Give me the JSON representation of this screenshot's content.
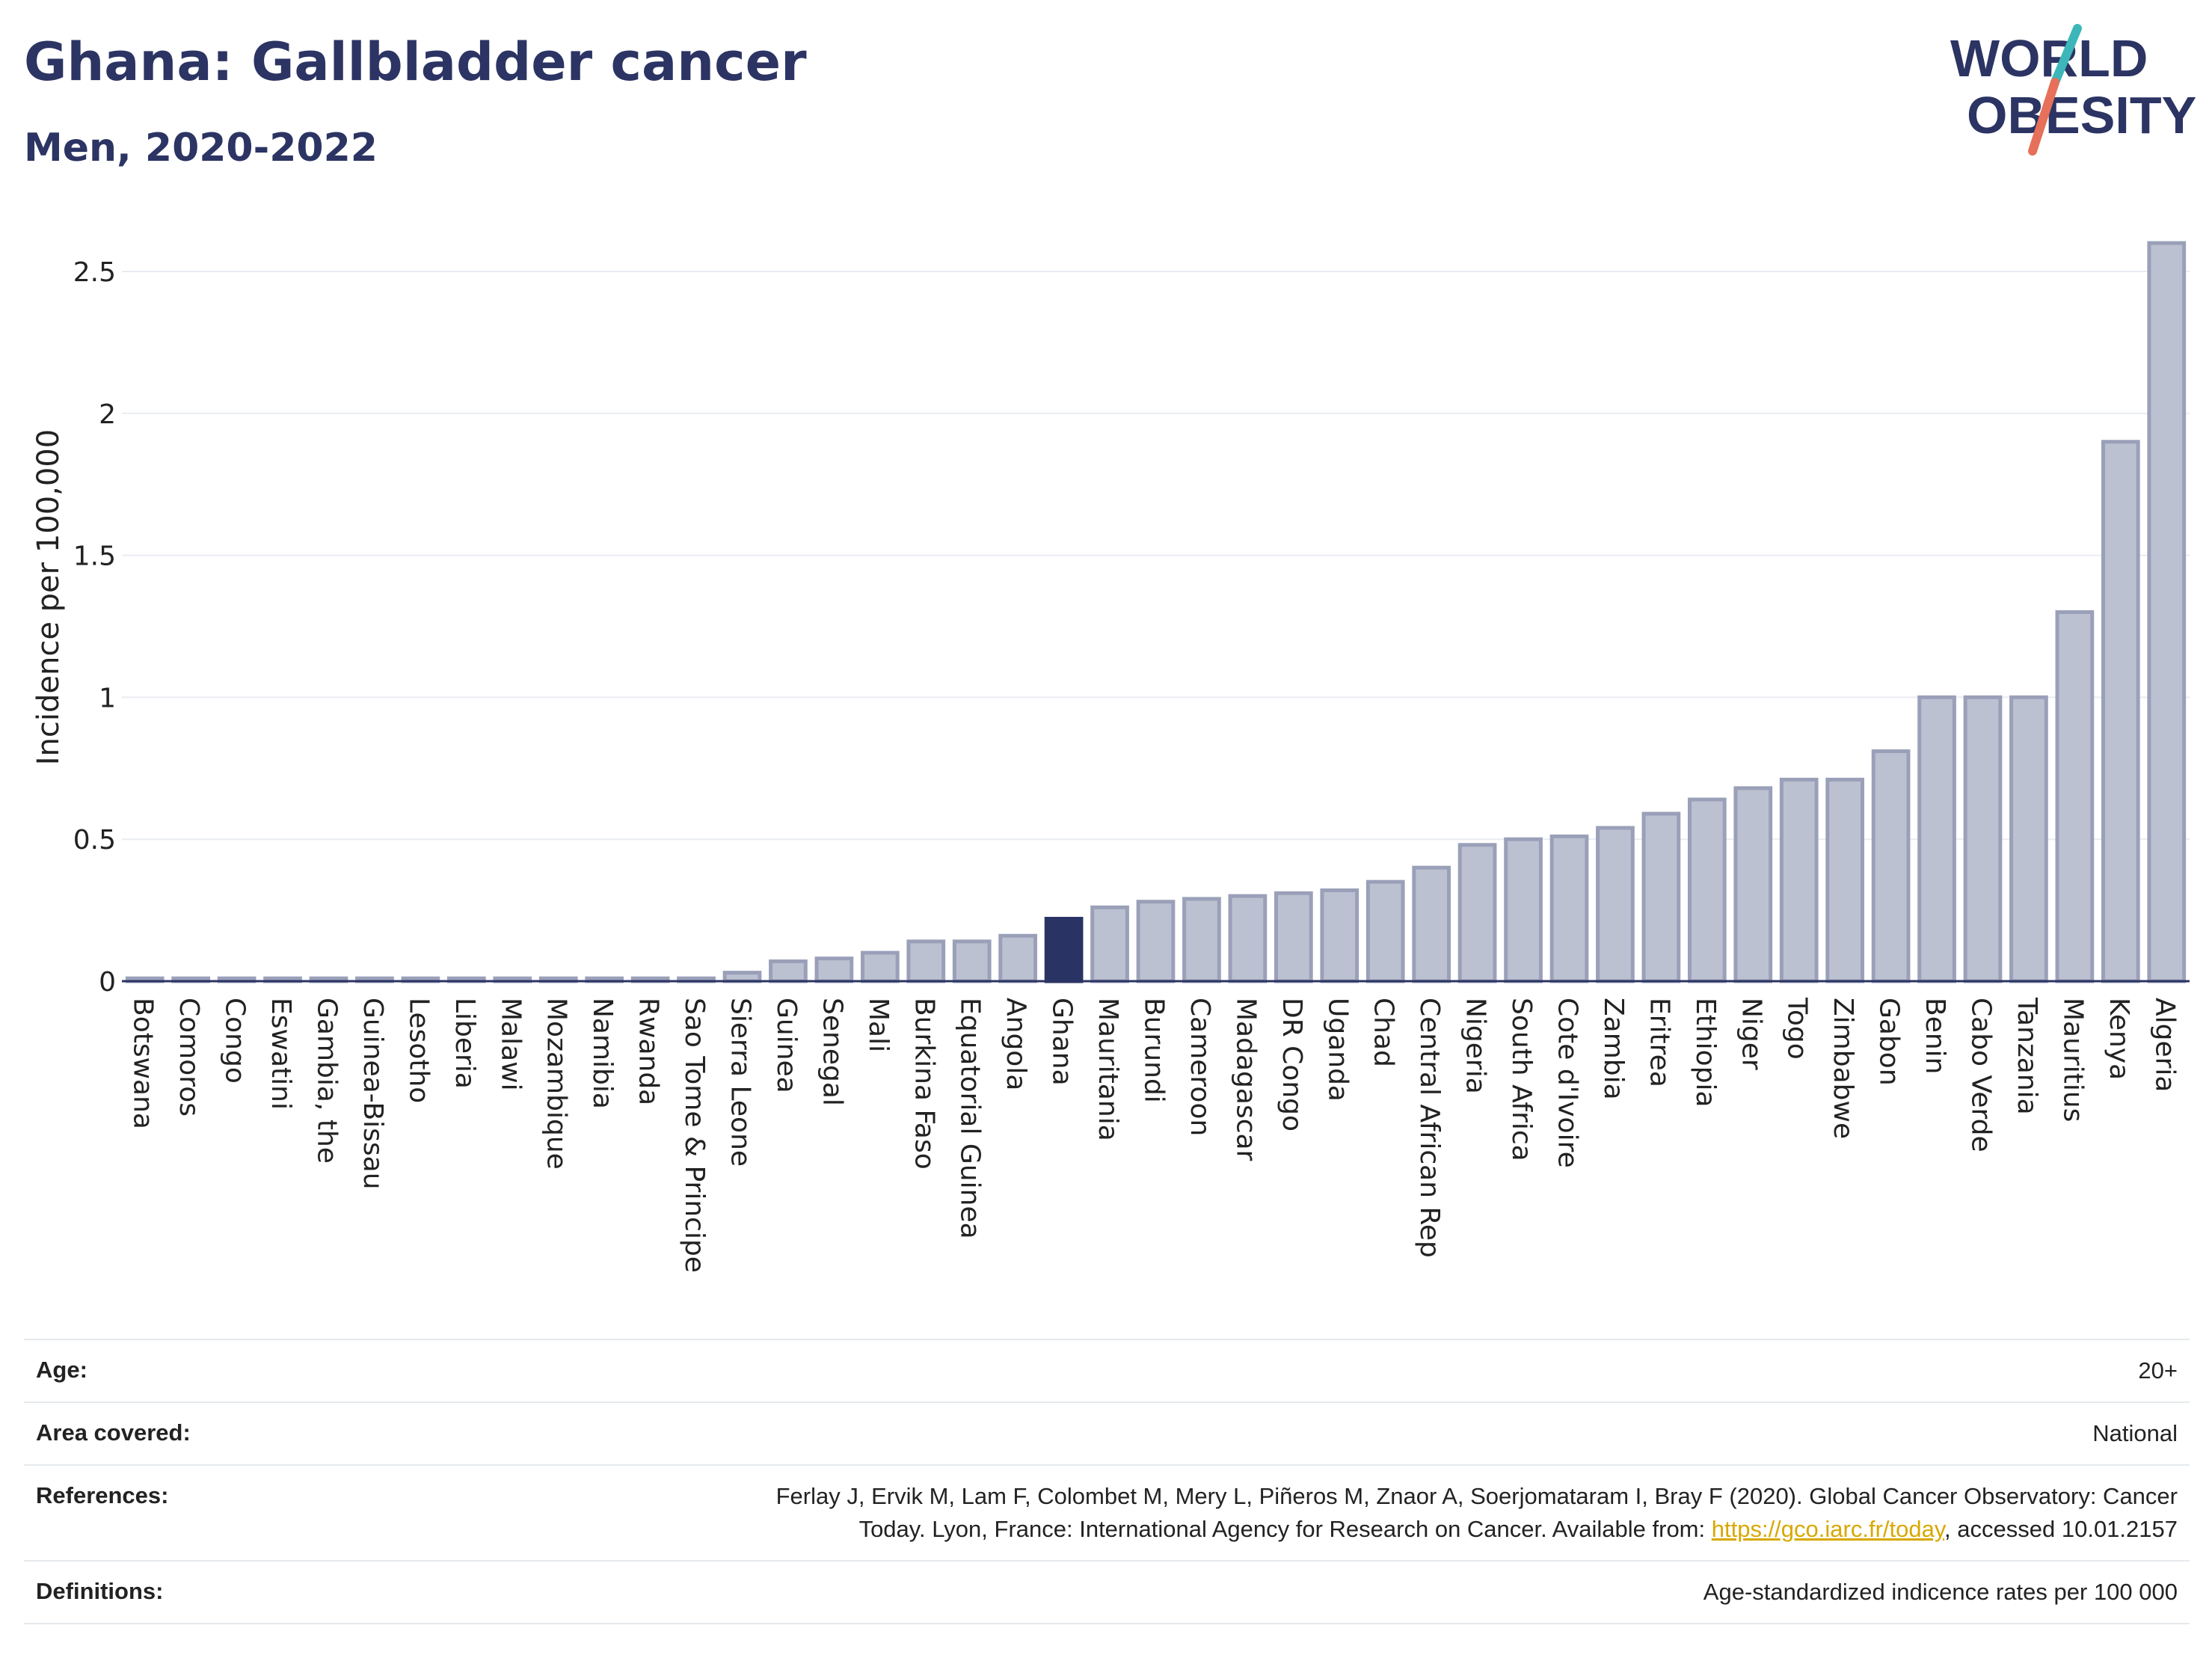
{
  "header": {
    "title": "Ghana: Gallbladder cancer",
    "subtitle": "Men, 2020-2022"
  },
  "logo": {
    "line1": "WORLD",
    "line2": "OBESITY"
  },
  "colors": {
    "bar": "#bcc1d1",
    "bar_stroke": "#9aa0b8",
    "highlight": "#2a3464",
    "grid": "#e9ecf1",
    "text": "#2d3561"
  },
  "chart_data": {
    "type": "bar",
    "ylabel": "Incidence per 100,000",
    "ylim": [
      0,
      2.6
    ],
    "yticks": [
      0,
      0.5,
      1,
      1.5,
      2,
      2.5
    ],
    "ytick_labels": [
      "0",
      "0.5",
      "1",
      "1.5",
      "2",
      "2.5"
    ],
    "grid": true,
    "highlight": "Ghana",
    "categories": [
      "Botswana",
      "Comoros",
      "Congo",
      "Eswatini",
      "Gambia, the",
      "Guinea-Bissau",
      "Lesotho",
      "Liberia",
      "Malawi",
      "Mozambique",
      "Namibia",
      "Rwanda",
      "Sao Tome & Principe",
      "Sierra Leone",
      "Guinea",
      "Senegal",
      "Mali",
      "Burkina Faso",
      "Equatorial Guinea",
      "Angola",
      "Ghana",
      "Mauritania",
      "Burundi",
      "Cameroon",
      "Madagascar",
      "DR Congo",
      "Uganda",
      "Chad",
      "Central African Rep",
      "Nigeria",
      "South Africa",
      "Cote d'Ivoire",
      "Zambia",
      "Eritrea",
      "Ethiopia",
      "Niger",
      "Togo",
      "Zimbabwe",
      "Gabon",
      "Benin",
      "Cabo Verde",
      "Tanzania",
      "Mauritius",
      "Kenya",
      "Algeria"
    ],
    "values": [
      0.01,
      0.01,
      0.01,
      0.01,
      0.01,
      0.01,
      0.01,
      0.01,
      0.01,
      0.01,
      0.01,
      0.01,
      0.01,
      0.03,
      0.07,
      0.08,
      0.1,
      0.14,
      0.14,
      0.16,
      0.22,
      0.26,
      0.28,
      0.29,
      0.3,
      0.31,
      0.32,
      0.35,
      0.4,
      0.48,
      0.5,
      0.51,
      0.54,
      0.59,
      0.64,
      0.68,
      0.71,
      0.71,
      0.81,
      1.0,
      1.0,
      1.0,
      1.3,
      1.9,
      2.6
    ]
  },
  "meta": [
    {
      "label": "Age:",
      "value": "20+"
    },
    {
      "label": "Area covered:",
      "value": "National"
    },
    {
      "label": "References:",
      "value_line1": "Ferlay J, Ervik M, Lam F, Colombet M, Mery L, Piñeros M, Znaor A, Soerjomataram I, Bray F (2020). Global Cancer Observatory: Cancer",
      "value_line2_prefix": "Today. Lyon, France: International Agency for Research on Cancer. Available from: ",
      "link": "https://gco.iarc.fr/today",
      "value_line2_suffix": ", accessed 10.01.2157"
    },
    {
      "label": "Definitions:",
      "value": "Age-standardized indicence rates per 100 000"
    }
  ]
}
